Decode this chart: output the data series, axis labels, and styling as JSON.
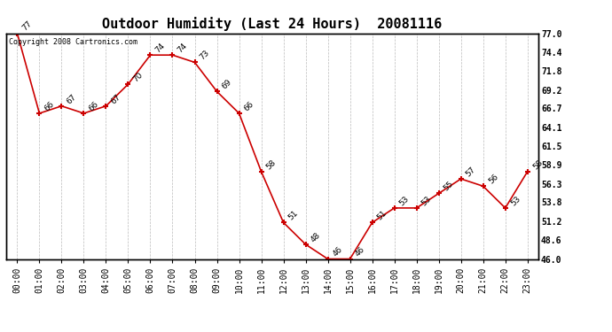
{
  "title": "Outdoor Humidity (Last 24 Hours)  20081116",
  "copyright": "Copyright 2008 Cartronics.com",
  "x_labels": [
    "00:00",
    "01:00",
    "02:00",
    "03:00",
    "04:00",
    "05:00",
    "06:00",
    "07:00",
    "08:00",
    "09:00",
    "10:00",
    "11:00",
    "12:00",
    "13:00",
    "14:00",
    "15:00",
    "16:00",
    "17:00",
    "18:00",
    "19:00",
    "20:00",
    "21:00",
    "22:00",
    "23:00"
  ],
  "y_values": [
    77,
    66,
    67,
    66,
    67,
    70,
    74,
    74,
    73,
    69,
    66,
    58,
    51,
    48,
    46,
    46,
    51,
    53,
    53,
    55,
    57,
    56,
    53,
    58
  ],
  "y_labels": [
    77.0,
    74.4,
    71.8,
    69.2,
    66.7,
    64.1,
    61.5,
    58.9,
    56.3,
    53.8,
    51.2,
    48.6,
    46.0
  ],
  "ylim": [
    46.0,
    77.0
  ],
  "line_color": "#cc0000",
  "marker_color": "#cc0000",
  "bg_color": "#ffffff",
  "plot_bg_color": "#ffffff",
  "grid_color": "#bbbbbb",
  "title_fontsize": 11,
  "label_fontsize": 6.5,
  "tick_fontsize": 7,
  "copyright_fontsize": 6
}
